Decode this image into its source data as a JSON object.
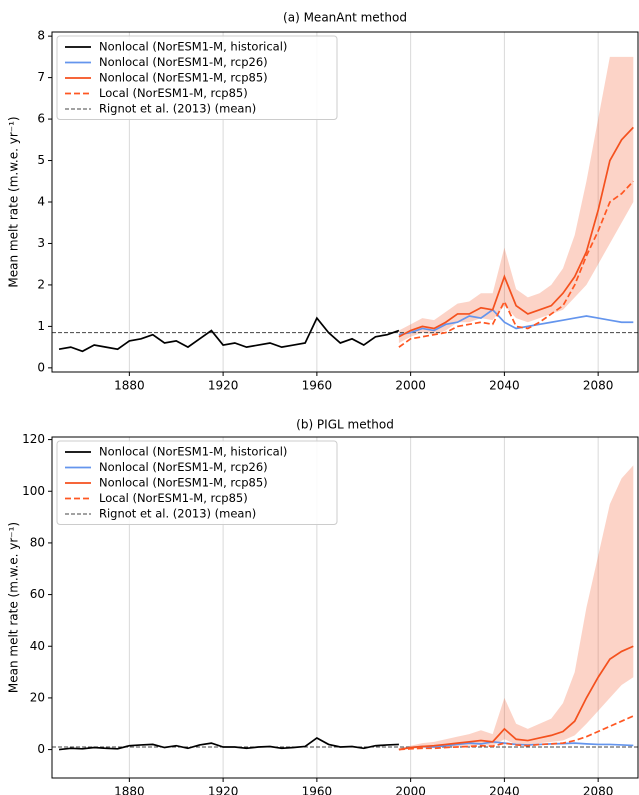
{
  "chart_data": [
    {
      "type": "line",
      "title": "(a) MeanAnt method",
      "y_label": "Mean melt rate (m.w.e. yr⁻¹)",
      "xlim": [
        1847,
        2097
      ],
      "xticks": [
        1880,
        1920,
        1960,
        2000,
        2040,
        2080
      ],
      "ylim": [
        -0.1,
        8.1
      ],
      "yticks": [
        0,
        1,
        2,
        3,
        4,
        5,
        6,
        7,
        8
      ],
      "grid": true,
      "legend": "upper left",
      "series": [
        {
          "name": "Nonlocal (NorESM1-M, historical)",
          "color": "#000000",
          "linestyle": "solid",
          "x": [
            1850,
            1855,
            1860,
            1865,
            1870,
            1875,
            1880,
            1885,
            1890,
            1895,
            1900,
            1905,
            1910,
            1915,
            1920,
            1925,
            1930,
            1935,
            1940,
            1945,
            1950,
            1955,
            1960,
            1965,
            1970,
            1975,
            1980,
            1985,
            1990,
            1995
          ],
          "values": [
            0.45,
            0.5,
            0.4,
            0.55,
            0.5,
            0.45,
            0.65,
            0.7,
            0.8,
            0.6,
            0.65,
            0.5,
            0.7,
            0.9,
            0.55,
            0.6,
            0.5,
            0.55,
            0.6,
            0.5,
            0.55,
            0.6,
            1.2,
            0.85,
            0.6,
            0.7,
            0.55,
            0.75,
            0.8,
            0.9
          ]
        },
        {
          "name": "Nonlocal (NorESM1-M, rcp26)",
          "color": "#6495ed",
          "linestyle": "solid",
          "x": [
            1995,
            2000,
            2005,
            2010,
            2015,
            2020,
            2025,
            2030,
            2035,
            2040,
            2045,
            2050,
            2055,
            2060,
            2065,
            2070,
            2075,
            2080,
            2085,
            2090,
            2095
          ],
          "values": [
            0.8,
            0.85,
            0.95,
            0.9,
            1.05,
            1.1,
            1.25,
            1.2,
            1.4,
            1.1,
            0.95,
            1.0,
            1.05,
            1.1,
            1.15,
            1.2,
            1.25,
            1.2,
            1.15,
            1.1,
            1.1
          ]
        },
        {
          "name": "Nonlocal (NorESM1-M, rcp85)",
          "color": "#f4511e",
          "linestyle": "solid",
          "x": [
            1995,
            2000,
            2005,
            2010,
            2015,
            2020,
            2025,
            2030,
            2035,
            2040,
            2045,
            2050,
            2055,
            2060,
            2065,
            2070,
            2075,
            2080,
            2085,
            2090,
            2095
          ],
          "values": [
            0.75,
            0.9,
            1.0,
            0.95,
            1.1,
            1.3,
            1.3,
            1.45,
            1.4,
            2.2,
            1.5,
            1.3,
            1.4,
            1.5,
            1.8,
            2.2,
            2.8,
            3.8,
            5.0,
            5.5,
            5.8
          ],
          "lower": [
            0.6,
            0.75,
            0.85,
            0.8,
            0.9,
            1.1,
            1.1,
            1.2,
            1.15,
            1.5,
            1.2,
            1.1,
            1.2,
            1.3,
            1.4,
            1.7,
            2.0,
            2.5,
            3.0,
            3.5,
            4.0
          ],
          "upper": [
            0.9,
            1.05,
            1.2,
            1.15,
            1.35,
            1.55,
            1.6,
            1.8,
            1.8,
            2.9,
            1.9,
            1.7,
            1.8,
            2.0,
            2.4,
            3.2,
            4.5,
            6.0,
            7.5,
            7.5,
            7.5
          ]
        },
        {
          "name": "Local (NorESM1-M, rcp85)",
          "color": "#ff5722",
          "linestyle": "dashed",
          "x": [
            1995,
            2000,
            2005,
            2010,
            2015,
            2020,
            2025,
            2030,
            2035,
            2040,
            2045,
            2050,
            2055,
            2060,
            2065,
            2070,
            2075,
            2080,
            2085,
            2090,
            2095
          ],
          "values": [
            0.5,
            0.7,
            0.75,
            0.8,
            0.85,
            1.0,
            1.05,
            1.1,
            1.05,
            1.6,
            1.0,
            0.95,
            1.1,
            1.3,
            1.5,
            2.0,
            2.7,
            3.3,
            4.0,
            4.2,
            4.5
          ]
        }
      ],
      "reference_line": {
        "name": "Rignot et al. (2013) (mean)",
        "value": 0.85,
        "color": "#444444"
      }
    },
    {
      "type": "line",
      "title": "(b) PIGL method",
      "y_label": "Mean melt rate (m.w.e. yr⁻¹)",
      "xlim": [
        1847,
        2097
      ],
      "xticks": [
        1880,
        1920,
        1960,
        2000,
        2040,
        2080
      ],
      "ylim": [
        -11,
        121
      ],
      "yticks": [
        0,
        20,
        40,
        60,
        80,
        100,
        120
      ],
      "grid": true,
      "legend": "upper left",
      "series": [
        {
          "name": "Nonlocal (NorESM1-M, historical)",
          "color": "#000000",
          "linestyle": "solid",
          "x": [
            1850,
            1855,
            1860,
            1865,
            1870,
            1875,
            1880,
            1885,
            1890,
            1895,
            1900,
            1905,
            1910,
            1915,
            1920,
            1925,
            1930,
            1935,
            1940,
            1945,
            1950,
            1955,
            1960,
            1965,
            1970,
            1975,
            1980,
            1985,
            1990,
            1995
          ],
          "values": [
            0,
            0.5,
            0.3,
            0.8,
            0.5,
            0.3,
            1.5,
            1.8,
            2.0,
            0.8,
            1.5,
            0.5,
            1.8,
            2.5,
            1.0,
            1.0,
            0.5,
            1.0,
            1.2,
            0.5,
            0.8,
            1.2,
            4.5,
            2.0,
            1.0,
            1.2,
            0.5,
            1.5,
            1.8,
            2.0
          ]
        },
        {
          "name": "Nonlocal (NorESM1-M, rcp26)",
          "color": "#6495ed",
          "linestyle": "solid",
          "x": [
            1995,
            2000,
            2005,
            2010,
            2015,
            2020,
            2025,
            2030,
            2035,
            2040,
            2045,
            2050,
            2055,
            2060,
            2065,
            2070,
            2075,
            2080,
            2085,
            2090,
            2095
          ],
          "values": [
            0,
            0.8,
            1.2,
            1.0,
            1.5,
            2.0,
            2.5,
            2.2,
            3.0,
            2.5,
            2.0,
            1.8,
            2.0,
            2.2,
            2.3,
            2.5,
            2.2,
            2.0,
            2.0,
            1.8,
            1.6
          ]
        },
        {
          "name": "Nonlocal (NorESM1-M, rcp85)",
          "color": "#f4511e",
          "linestyle": "solid",
          "x": [
            1995,
            2000,
            2005,
            2010,
            2015,
            2020,
            2025,
            2030,
            2035,
            2040,
            2045,
            2050,
            2055,
            2060,
            2065,
            2070,
            2075,
            2080,
            2085,
            2090,
            2095
          ],
          "values": [
            0,
            0.8,
            1.2,
            1.5,
            2.0,
            2.5,
            3.0,
            3.5,
            3.0,
            8.0,
            4.0,
            3.5,
            4.5,
            5.5,
            7.0,
            11,
            20,
            28,
            35,
            38,
            40
          ],
          "lower": [
            0,
            0.3,
            0.5,
            0.8,
            1.0,
            1.2,
            1.5,
            1.8,
            1.5,
            4.0,
            2.0,
            1.8,
            2.5,
            3.0,
            3.5,
            5.5,
            10,
            15,
            20,
            25,
            28
          ],
          "upper": [
            0.5,
            1.5,
            2.5,
            3.0,
            4.0,
            5.0,
            6.0,
            7.5,
            6.0,
            20,
            10,
            8.0,
            10,
            12,
            18,
            30,
            55,
            75,
            95,
            105,
            110
          ]
        },
        {
          "name": "Local (NorESM1-M, rcp85)",
          "color": "#ff5722",
          "linestyle": "dashed",
          "x": [
            1995,
            2000,
            2005,
            2010,
            2015,
            2020,
            2025,
            2030,
            2035,
            2040,
            2045,
            2050,
            2055,
            2060,
            2065,
            2070,
            2075,
            2080,
            2085,
            2090,
            2095
          ],
          "values": [
            0,
            0.3,
            0.5,
            0.5,
            0.8,
            1.0,
            1.2,
            1.5,
            1.3,
            2.5,
            1.8,
            1.5,
            2.0,
            2.2,
            2.5,
            3.5,
            5.0,
            7.0,
            9.0,
            11,
            13
          ]
        }
      ],
      "reference_line": {
        "name": "Rignot et al. (2013) (mean)",
        "value": 1,
        "color": "#444444"
      }
    }
  ]
}
